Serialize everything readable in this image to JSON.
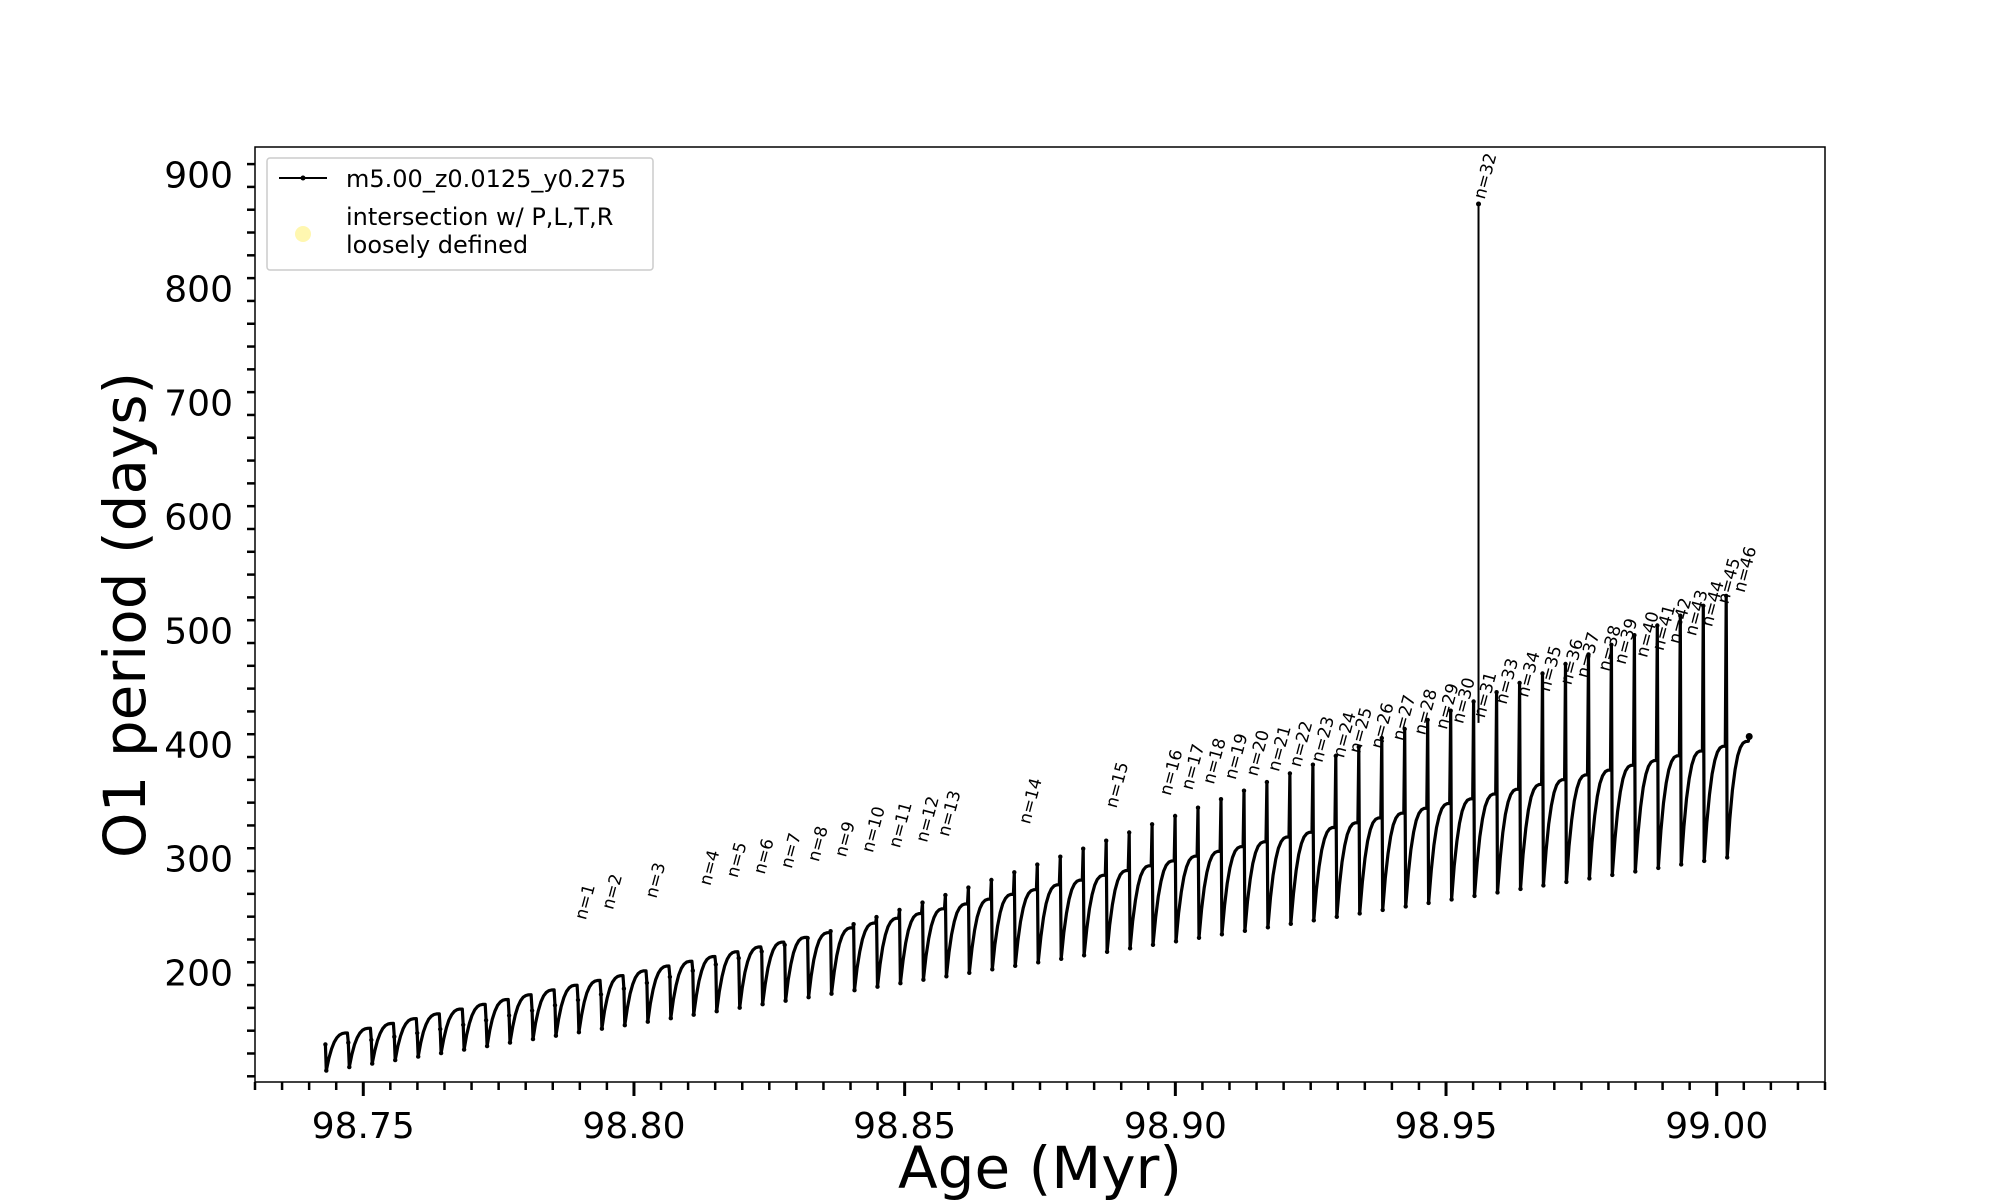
{
  "chart_data": {
    "type": "line",
    "xlabel": "Age (Myr)",
    "ylabel": "O1 period (days)",
    "xlim": [
      98.73,
      99.02
    ],
    "ylim": [
      105,
      925
    ],
    "x_ticks": [
      98.75,
      98.8,
      98.85,
      98.9,
      98.95,
      99.0
    ],
    "x_tick_labels": [
      "98.75",
      "98.80",
      "98.85",
      "98.90",
      "98.95",
      "99.00"
    ],
    "y_ticks": [
      200,
      300,
      400,
      500,
      600,
      700,
      800,
      900
    ],
    "y_tick_labels": [
      "200",
      "300",
      "400",
      "500",
      "600",
      "700",
      "800",
      "900"
    ],
    "grid": false,
    "legend": {
      "placement": "upper-left",
      "entries": [
        {
          "label": "m5.00_z0.0125_y0.275",
          "marker": "line-with-dots",
          "color": "#000000"
        },
        {
          "label_lines": [
            "intersection w/ P,L,T,R",
            "loosely defined"
          ],
          "marker": "circle",
          "color": "#fff7b0"
        }
      ]
    },
    "series": [
      {
        "name": "m5.00_z0.0125_y0.275",
        "color": "#000000",
        "baseline": {
          "x": [
            98.743,
            99.006
          ],
          "y": [
            148,
            408
          ]
        },
        "cycle_minima": {
          "x": [
            98.743,
            99.006
          ],
          "y": [
            115,
            305
          ]
        },
        "cycle_peaks": {
          "x": [
            98.743,
            99.006
          ],
          "y": [
            138,
            540
          ]
        },
        "cycle_count": 62,
        "outlier_spike": {
          "x": 98.956,
          "y": 875
        },
        "end_point": {
          "x": 99.006,
          "y": 408
        }
      }
    ],
    "annotations": [
      {
        "text": "n=1",
        "x": 98.79,
        "y": 243
      },
      {
        "text": "n=2",
        "x": 98.795,
        "y": 252
      },
      {
        "text": "n=3",
        "x": 98.803,
        "y": 262
      },
      {
        "text": "n=4",
        "x": 98.813,
        "y": 273
      },
      {
        "text": "n=5",
        "x": 98.818,
        "y": 280
      },
      {
        "text": "n=6",
        "x": 98.823,
        "y": 283
      },
      {
        "text": "n=7",
        "x": 98.828,
        "y": 288
      },
      {
        "text": "n=8",
        "x": 98.833,
        "y": 294
      },
      {
        "text": "n=9",
        "x": 98.838,
        "y": 298
      },
      {
        "text": "n=10",
        "x": 98.843,
        "y": 302
      },
      {
        "text": "n=11",
        "x": 98.848,
        "y": 306
      },
      {
        "text": "n=12",
        "x": 98.853,
        "y": 311
      },
      {
        "text": "n=13",
        "x": 98.857,
        "y": 316
      },
      {
        "text": "n=14",
        "x": 98.872,
        "y": 327
      },
      {
        "text": "n=15",
        "x": 98.888,
        "y": 341
      },
      {
        "text": "n=16",
        "x": 98.898,
        "y": 352
      },
      {
        "text": "n=17",
        "x": 98.902,
        "y": 357
      },
      {
        "text": "n=18",
        "x": 98.906,
        "y": 362
      },
      {
        "text": "n=19",
        "x": 98.91,
        "y": 366
      },
      {
        "text": "n=20",
        "x": 98.914,
        "y": 369
      },
      {
        "text": "n=21",
        "x": 98.918,
        "y": 373
      },
      {
        "text": "n=22",
        "x": 98.922,
        "y": 377
      },
      {
        "text": "n=23",
        "x": 98.926,
        "y": 381
      },
      {
        "text": "n=24",
        "x": 98.93,
        "y": 385
      },
      {
        "text": "n=25",
        "x": 98.933,
        "y": 389
      },
      {
        "text": "n=26",
        "x": 98.937,
        "y": 393
      },
      {
        "text": "n=27",
        "x": 98.941,
        "y": 400
      },
      {
        "text": "n=28",
        "x": 98.945,
        "y": 405
      },
      {
        "text": "n=29",
        "x": 98.949,
        "y": 410
      },
      {
        "text": "n=30",
        "x": 98.952,
        "y": 415
      },
      {
        "text": "n=31",
        "x": 98.956,
        "y": 420
      },
      {
        "text": "n=32",
        "x": 98.956,
        "y": 875
      },
      {
        "text": "n=33",
        "x": 98.96,
        "y": 432
      },
      {
        "text": "n=34",
        "x": 98.964,
        "y": 438
      },
      {
        "text": "n=35",
        "x": 98.968,
        "y": 443
      },
      {
        "text": "n=36",
        "x": 98.972,
        "y": 449
      },
      {
        "text": "n=37",
        "x": 98.975,
        "y": 455
      },
      {
        "text": "n=38",
        "x": 98.979,
        "y": 461
      },
      {
        "text": "n=39",
        "x": 98.982,
        "y": 467
      },
      {
        "text": "n=40",
        "x": 98.986,
        "y": 473
      },
      {
        "text": "n=41",
        "x": 98.989,
        "y": 479
      },
      {
        "text": "n=42",
        "x": 98.992,
        "y": 485
      },
      {
        "text": "n=43",
        "x": 98.995,
        "y": 492
      },
      {
        "text": "n=44",
        "x": 98.998,
        "y": 500
      },
      {
        "text": "n=45",
        "x": 99.001,
        "y": 520
      },
      {
        "text": "n=46",
        "x": 99.004,
        "y": 530
      }
    ]
  }
}
